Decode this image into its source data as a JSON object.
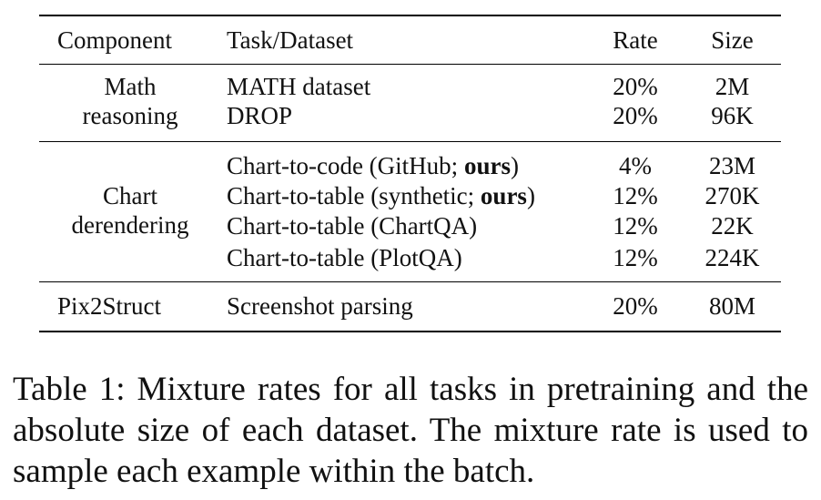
{
  "table": {
    "headers": {
      "component": "Component",
      "task": "Task/Dataset",
      "rate": "Rate",
      "size": "Size"
    },
    "groups": [
      {
        "component_line1": "Math",
        "component_line2": "reasoning",
        "rows": [
          {
            "task": "MATH dataset",
            "rate": "20%",
            "size": "2M"
          },
          {
            "task": "DROP",
            "rate": "20%",
            "size": "96K"
          }
        ]
      },
      {
        "component_line1": "Chart",
        "component_line2": "derendering",
        "rows": [
          {
            "task_prefix": "Chart-to-code (GitHub; ",
            "task_bold": "ours",
            "task_suffix": ")",
            "rate": "4%",
            "size": "23M"
          },
          {
            "task_prefix": "Chart-to-table (synthetic; ",
            "task_bold": "ours",
            "task_suffix": ")",
            "rate": "12%",
            "size": "270K"
          },
          {
            "task": "Chart-to-table (ChartQA)",
            "rate": "12%",
            "size": "22K"
          },
          {
            "task": "Chart-to-table (PlotQA)",
            "rate": "12%",
            "size": "224K"
          }
        ]
      },
      {
        "component": "Pix2Struct",
        "rows": [
          {
            "task": "Screenshot parsing",
            "rate": "20%",
            "size": "80M"
          }
        ]
      }
    ]
  },
  "caption": "Table 1: Mixture rates for all tasks in pretraining and the absolute size of each dataset. The mixture rate is used to sample each example within the batch."
}
